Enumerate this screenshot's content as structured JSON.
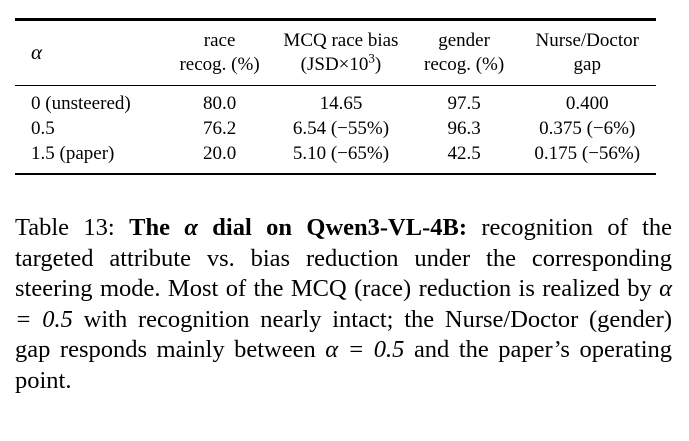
{
  "table": {
    "headers": {
      "alpha": "α",
      "race_recog": [
        "race",
        "recog. (%)"
      ],
      "mcq_bias": [
        "MCQ race bias",
        "(JSD×10",
        "3",
        ")"
      ],
      "gender_recog": [
        "gender",
        "recog. (%)"
      ],
      "nurse_doctor": [
        "Nurse/Doctor",
        "gap"
      ]
    },
    "rows": [
      {
        "alpha": "0 (unsteered)",
        "race": "80.0",
        "mcq": "14.65",
        "gender": "97.5",
        "gap": "0.400"
      },
      {
        "alpha": "0.5",
        "race": "76.2",
        "mcq": "6.54 (−55%)",
        "gender": "96.3",
        "gap": "0.375 (−6%)"
      },
      {
        "alpha": "1.5 (paper)",
        "race": "20.0",
        "mcq": "5.10 (−65%)",
        "gender": "42.5",
        "gap": "0.175 (−56%)"
      }
    ]
  },
  "caption": {
    "label": "Table 13:",
    "bold_pre": "The",
    "bold_alpha": "α",
    "bold_post": "dial on Qwen3-VL-4B:",
    "text_1": "recognition of the targeted attribute vs. bias reduction under the corresponding steering mode. Most of the MCQ (race) reduction is realized by",
    "math_1": "α = 0.5",
    "text_2": "with recognition nearly intact; the Nurse/Doctor (gender) gap responds mainly between",
    "math_2": "α = 0.5",
    "text_3": "and the paper’s operating point."
  }
}
